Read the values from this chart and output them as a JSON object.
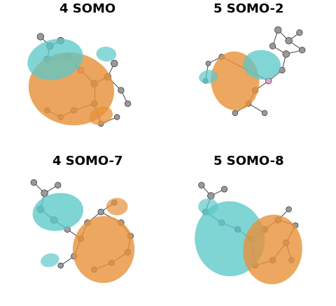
{
  "title": "",
  "background_color": "#ffffff",
  "panels": [
    {
      "label": "4 SOMO",
      "row": 0,
      "col": 0
    },
    {
      "label": "5 SOMO-2",
      "row": 0,
      "col": 1
    },
    {
      "label": "4 SOMO-7",
      "row": 1,
      "col": 0
    },
    {
      "label": "5 SOMO-8",
      "row": 1,
      "col": 1
    }
  ],
  "label_fontsize": 13,
  "label_fontweight": "bold",
  "orbital_color_1": "#5BC8C8",
  "orbital_color_2": "#E8913A",
  "atom_color_gray": "#999999",
  "figsize": [
    4.8,
    4.38
  ],
  "dpi": 100
}
